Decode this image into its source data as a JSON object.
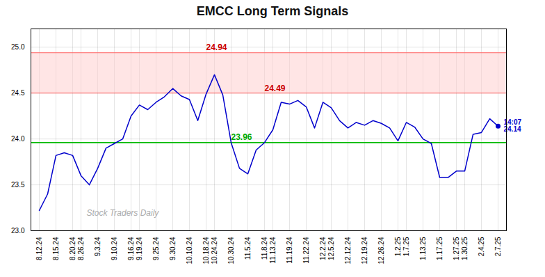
{
  "chart_data": {
    "type": "line",
    "title": "EMCC Long Term Signals",
    "categories": [
      "8.12.24",
      null,
      "8.15.24",
      null,
      "8.20.24",
      "8.26.24",
      null,
      "9.3.24",
      null,
      "9.10.24",
      null,
      "9.16.24",
      "9.19.24",
      null,
      "9.25.24",
      null,
      "9.30.24",
      null,
      "10.10.24",
      null,
      "10.18.24",
      "10.24.24",
      null,
      "10.30.24",
      null,
      "11.5.24",
      null,
      "11.8.24",
      "11.13.24",
      null,
      "11.19.24",
      null,
      "11.22.24",
      null,
      "12.2.24",
      "12.5.24",
      null,
      "12.12.24",
      null,
      "12.19.24",
      null,
      "12.26.24",
      null,
      "1.2.25",
      "1.7.25",
      null,
      "1.13.25",
      null,
      "1.17.25",
      null,
      "1.27.25",
      "1.30.25",
      null,
      "2.4.25",
      null,
      "2.7.25"
    ],
    "values": [
      23.22,
      23.4,
      23.82,
      23.85,
      23.82,
      23.6,
      23.5,
      23.68,
      23.9,
      23.95,
      24.0,
      24.25,
      24.37,
      24.32,
      24.4,
      24.46,
      24.55,
      24.47,
      24.43,
      24.2,
      24.49,
      24.7,
      24.48,
      23.96,
      23.68,
      23.62,
      23.88,
      23.96,
      24.1,
      24.4,
      24.38,
      24.42,
      24.35,
      24.12,
      24.4,
      24.34,
      24.2,
      24.12,
      24.18,
      24.15,
      24.2,
      24.17,
      24.12,
      23.98,
      24.18,
      24.13,
      24.0,
      23.95,
      23.58,
      23.58,
      23.65,
      23.65,
      24.05,
      24.07,
      24.22,
      24.14
    ],
    "color": "#0000cc",
    "ylim": [
      23.0,
      25.2
    ],
    "yticks": [
      {
        "value": 23.0,
        "label": "23.0"
      },
      {
        "value": 23.5,
        "label": "23.5"
      },
      {
        "value": 24.0,
        "label": "24.0"
      },
      {
        "value": 24.5,
        "label": "24.5"
      },
      {
        "value": 25.0,
        "label": "25.0"
      }
    ],
    "grid": true,
    "band": {
      "values": [
        24.5,
        24.94
      ],
      "color": "#ffcccc"
    },
    "hlines": [
      {
        "value": 24.94,
        "color": "#ff6666"
      },
      {
        "value": 24.5,
        "color": "#ff6666"
      },
      {
        "value": 23.96,
        "color": "#00bb00"
      }
    ],
    "annotations": [
      {
        "text": "24.94",
        "x": 20,
        "y": 24.94,
        "color": "#cc0000"
      },
      {
        "text": "24.49",
        "x": 27,
        "y": 24.49,
        "color": "#cc0000"
      },
      {
        "text": "23.96",
        "x": 23,
        "y": 23.96,
        "color": "#00aa00"
      },
      {
        "text": "14:07\n24.14",
        "x": 55,
        "y": 24.14,
        "color": "#0000cc"
      },
      {
        "text": "Stock Traders Daily",
        "color": "#aaaaaa"
      }
    ]
  }
}
